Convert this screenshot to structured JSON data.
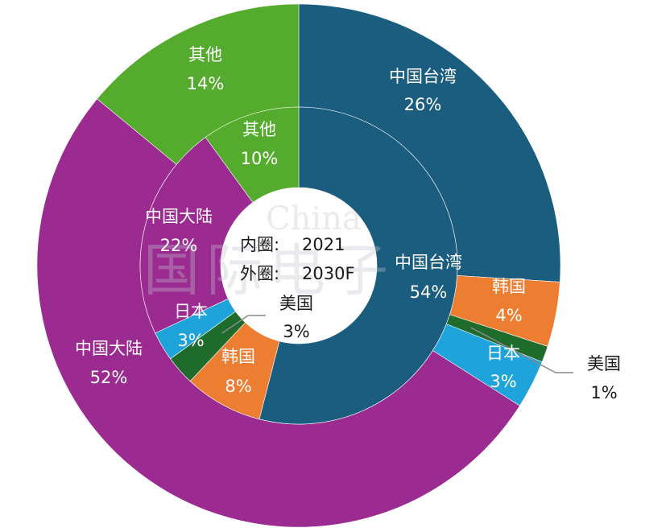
{
  "chart_data": {
    "type": "pie",
    "subtype": "nested-donut",
    "center_labels": [
      {
        "label": "内圈:",
        "value": "2021"
      },
      {
        "label": "外圈:",
        "value": "2030F"
      }
    ],
    "inner_ring": {
      "name": "2021",
      "slices": [
        {
          "label": "中国台湾",
          "value": 54,
          "value_label": "54%",
          "color": "#1b5d7e"
        },
        {
          "label": "韩国",
          "value": 8,
          "value_label": "8%",
          "color": "#ed7d31"
        },
        {
          "label": "美国",
          "value": 3,
          "value_label": "3%",
          "color": "#1e6b2c"
        },
        {
          "label": "日本",
          "value": 3,
          "value_label": "3%",
          "color": "#1fa3db"
        },
        {
          "label": "中国大陆",
          "value": 22,
          "value_label": "22%",
          "color": "#9b2a91"
        },
        {
          "label": "其他",
          "value": 10,
          "value_label": "10%",
          "color": "#54ab2e"
        }
      ]
    },
    "outer_ring": {
      "name": "2030F",
      "slices": [
        {
          "label": "中国台湾",
          "value": 26,
          "value_label": "26%",
          "color": "#1b5d7e"
        },
        {
          "label": "韩国",
          "value": 4,
          "value_label": "4%",
          "color": "#ed7d31"
        },
        {
          "label": "美国",
          "value": 1,
          "value_label": "1%",
          "color": "#1e6b2c"
        },
        {
          "label": "日本",
          "value": 3,
          "value_label": "3%",
          "color": "#1fa3db"
        },
        {
          "label": "中国大陆",
          "value": 52,
          "value_label": "52%",
          "color": "#9b2a91"
        },
        {
          "label": "其他",
          "value": 14,
          "value_label": "14%",
          "color": "#54ab2e"
        }
      ]
    },
    "start_angle": "12 o'clock",
    "direction": "clockwise",
    "legend": "none"
  },
  "watermark": {
    "line1": "China",
    "line2": "国际电子"
  }
}
